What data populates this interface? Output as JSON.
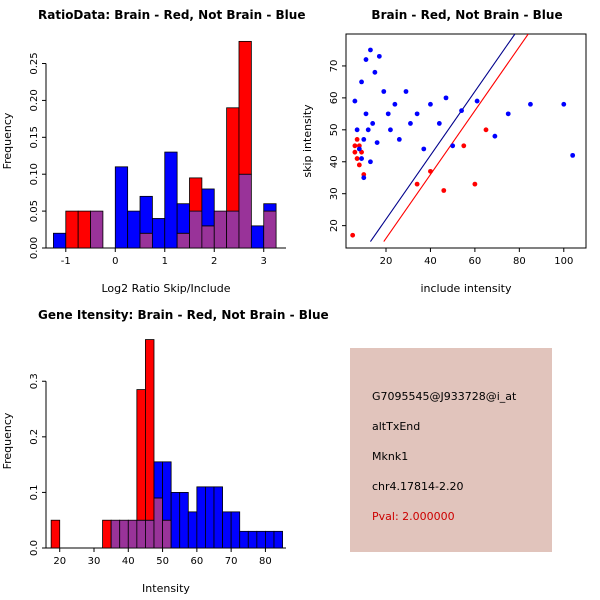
{
  "colors": {
    "brain": "#ff0000",
    "not_brain": "#0000ff",
    "overlap": "#993399",
    "scatter_line_blue": "#00008b",
    "scatter_line_red": "#ff0000",
    "info_background": "#e1c4bc",
    "pval_text": "#cc0000"
  },
  "info_box": {
    "lines": [
      "G7095545@J933728@i_at",
      "altTxEnd",
      "Mknk1",
      "chr4.17814-2.20",
      "Pval: 2.000000"
    ],
    "pval_color": "#cc0000"
  },
  "chart_data": [
    {
      "key": "hist_ratio",
      "type": "bar",
      "subtype": "overlaid-histogram",
      "title": "RatioData: Brain - Red, Not Brain - Blue",
      "xlabel": "Log2 Ratio Skip/Include",
      "ylabel": "Frequency",
      "bin_start": -1.25,
      "bin_width": 0.25,
      "xlim": [
        -1.4,
        3.45
      ],
      "ylim": [
        0,
        0.29
      ],
      "xticks": [
        -1,
        0,
        1,
        2,
        3
      ],
      "yticks": [
        0,
        0.05,
        0.1,
        0.15,
        0.2,
        0.25
      ],
      "ytick_labels": [
        "0.00",
        "0.05",
        "0.10",
        "0.15",
        "0.20",
        "0.25"
      ],
      "grid": false,
      "legend": "none",
      "series": [
        {
          "name": "Brain",
          "color": "#ff0000",
          "values": [
            0,
            0.05,
            0.05,
            0.05,
            0,
            0,
            0,
            0.02,
            0,
            0,
            0.02,
            0.095,
            0.03,
            0.05,
            0.19,
            0.28,
            0,
            0.05
          ]
        },
        {
          "name": "Not Brain",
          "color": "#0000ff",
          "values": [
            0.02,
            0,
            0,
            0.05,
            0,
            0.11,
            0.05,
            0.07,
            0.04,
            0.13,
            0.06,
            0.05,
            0.08,
            0.05,
            0.05,
            0.1,
            0.03,
            0.06
          ]
        }
      ],
      "overlap_color": "#993399"
    },
    {
      "key": "scatter",
      "type": "scatter",
      "title": "Brain - Red, Not Brain - Blue",
      "xlabel": "include intensity",
      "ylabel": "skip intensity",
      "xlim": [
        2,
        110
      ],
      "ylim": [
        13,
        80
      ],
      "xticks": [
        20,
        40,
        60,
        80,
        100
      ],
      "yticks": [
        20,
        30,
        40,
        50,
        60,
        70
      ],
      "grid": false,
      "legend": "none",
      "series": [
        {
          "name": "Brain",
          "color": "#ff0000",
          "points": [
            [
              5,
              17
            ],
            [
              6,
              43
            ],
            [
              6,
              45
            ],
            [
              7,
              47
            ],
            [
              7,
              41
            ],
            [
              8,
              39
            ],
            [
              8,
              45
            ],
            [
              9,
              43
            ],
            [
              10,
              36
            ],
            [
              34,
              33
            ],
            [
              40,
              37
            ],
            [
              46,
              31
            ],
            [
              55,
              45
            ],
            [
              60,
              33
            ],
            [
              65,
              50
            ]
          ]
        },
        {
          "name": "Not Brain",
          "color": "#0000ff",
          "points": [
            [
              6,
              59
            ],
            [
              7,
              50
            ],
            [
              8,
              44
            ],
            [
              9,
              65
            ],
            [
              9,
              41
            ],
            [
              10,
              47
            ],
            [
              10,
              35
            ],
            [
              11,
              72
            ],
            [
              11,
              55
            ],
            [
              12,
              50
            ],
            [
              13,
              40
            ],
            [
              13,
              75
            ],
            [
              14,
              52
            ],
            [
              15,
              68
            ],
            [
              16,
              46
            ],
            [
              17,
              73
            ],
            [
              19,
              62
            ],
            [
              21,
              55
            ],
            [
              22,
              50
            ],
            [
              24,
              58
            ],
            [
              26,
              47
            ],
            [
              29,
              62
            ],
            [
              31,
              52
            ],
            [
              34,
              55
            ],
            [
              37,
              44
            ],
            [
              40,
              58
            ],
            [
              44,
              52
            ],
            [
              47,
              60
            ],
            [
              50,
              45
            ],
            [
              54,
              56
            ],
            [
              61,
              59
            ],
            [
              69,
              48
            ],
            [
              75,
              55
            ],
            [
              85,
              58
            ],
            [
              100,
              58
            ],
            [
              104,
              42
            ]
          ]
        }
      ],
      "lines": [
        {
          "name": "fit-line-blue",
          "color": "#00008b",
          "points": [
            [
              13,
              15
            ],
            [
              78,
              80
            ]
          ]
        },
        {
          "name": "fit-line-red",
          "color": "#ff0000",
          "points": [
            [
              19,
              15
            ],
            [
              84,
              80
            ]
          ]
        }
      ]
    },
    {
      "key": "hist_gene",
      "type": "bar",
      "subtype": "overlaid-histogram",
      "title": "Gene Itensity: Brain - Red, Not Brain - Blue",
      "xlabel": "Intensity",
      "ylabel": "Frequency",
      "bin_start": 17.5,
      "bin_width": 2.5,
      "xlim": [
        16,
        86
      ],
      "ylim": [
        0,
        0.385
      ],
      "xticks": [
        20,
        30,
        40,
        50,
        60,
        70,
        80
      ],
      "yticks": [
        0,
        0.1,
        0.2,
        0.3
      ],
      "ytick_labels": [
        "0.0",
        "0.1",
        "0.2",
        "0.3"
      ],
      "grid": false,
      "legend": "none",
      "series": [
        {
          "name": "Brain",
          "color": "#ff0000",
          "values": [
            0.05,
            0,
            0,
            0,
            0,
            0,
            0.05,
            0.05,
            0.05,
            0.05,
            0.285,
            0.375,
            0.09,
            0.05,
            0,
            0,
            0,
            0,
            0,
            0,
            0,
            0,
            0,
            0,
            0,
            0,
            0
          ]
        },
        {
          "name": "Not Brain",
          "color": "#0000ff",
          "values": [
            0,
            0,
            0,
            0,
            0,
            0,
            0,
            0.05,
            0.05,
            0.05,
            0.05,
            0.05,
            0.155,
            0.155,
            0.1,
            0.1,
            0.065,
            0.11,
            0.11,
            0.11,
            0.065,
            0.065,
            0.03,
            0.03,
            0.03,
            0.03,
            0.03
          ]
        }
      ],
      "overlap_color": "#993399"
    }
  ]
}
